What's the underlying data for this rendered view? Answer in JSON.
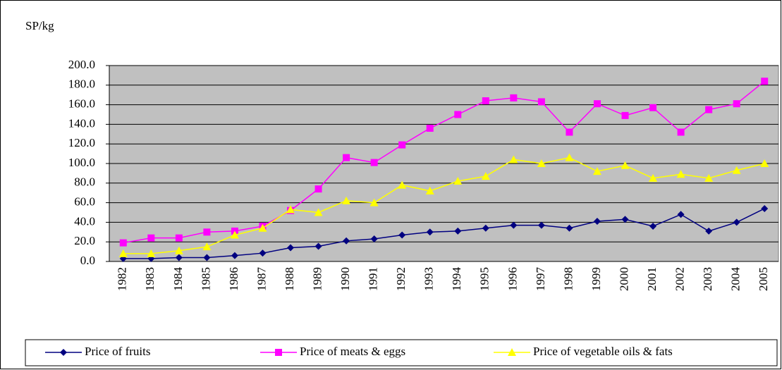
{
  "chart_data": {
    "type": "line",
    "y_label": "SP/kg",
    "categories": [
      "1982",
      "1983",
      "1984",
      "1985",
      "1986",
      "1987",
      "1988",
      "1989",
      "1990",
      "1991",
      "1992",
      "1993",
      "1994",
      "1995",
      "1996",
      "1997",
      "1998",
      "1999",
      "2000",
      "2001",
      "2002",
      "2003",
      "2004",
      "2005"
    ],
    "series": [
      {
        "name": "Price of fruits",
        "color": "#000080",
        "marker": "diamond",
        "values": [
          3,
          3,
          4,
          4,
          6,
          8.5,
          14,
          15.5,
          21,
          23,
          27,
          30,
          31,
          34,
          37,
          37,
          34,
          41,
          43,
          36,
          48,
          31,
          40,
          54
        ]
      },
      {
        "name": "Price of meats & eggs",
        "color": "#ff00ff",
        "marker": "square",
        "values": [
          19,
          24,
          24,
          30,
          31,
          36,
          52,
          74,
          106,
          101,
          119,
          136,
          150,
          164,
          167,
          163,
          132,
          161,
          149,
          157,
          132,
          155,
          161,
          184
        ]
      },
      {
        "name": "Price of vegetable oils & fats",
        "color": "#ffff00",
        "marker": "triangle",
        "values": [
          8,
          8,
          11,
          15,
          27,
          34,
          53,
          50,
          62,
          60,
          78,
          72,
          82,
          87,
          104,
          100,
          106,
          92,
          98,
          85,
          89,
          85,
          93,
          100
        ]
      }
    ],
    "ylim": [
      0,
      200
    ],
    "yticks": [
      {
        "value": 0,
        "label": "0.0"
      },
      {
        "value": 20,
        "label": "20.0"
      },
      {
        "value": 40,
        "label": "40.0"
      },
      {
        "value": 60,
        "label": "60.0"
      },
      {
        "value": 80,
        "label": "80.0"
      },
      {
        "value": 100,
        "label": "100.0"
      },
      {
        "value": 120,
        "label": "120.0"
      },
      {
        "value": 140,
        "label": "140.0"
      },
      {
        "value": 160,
        "label": "160.0"
      },
      {
        "value": 180,
        "label": "180.0"
      },
      {
        "value": 200,
        "label": "200.0"
      }
    ],
    "grid": true,
    "legend": "bottom",
    "plot_background": "#c0c0c0"
  }
}
